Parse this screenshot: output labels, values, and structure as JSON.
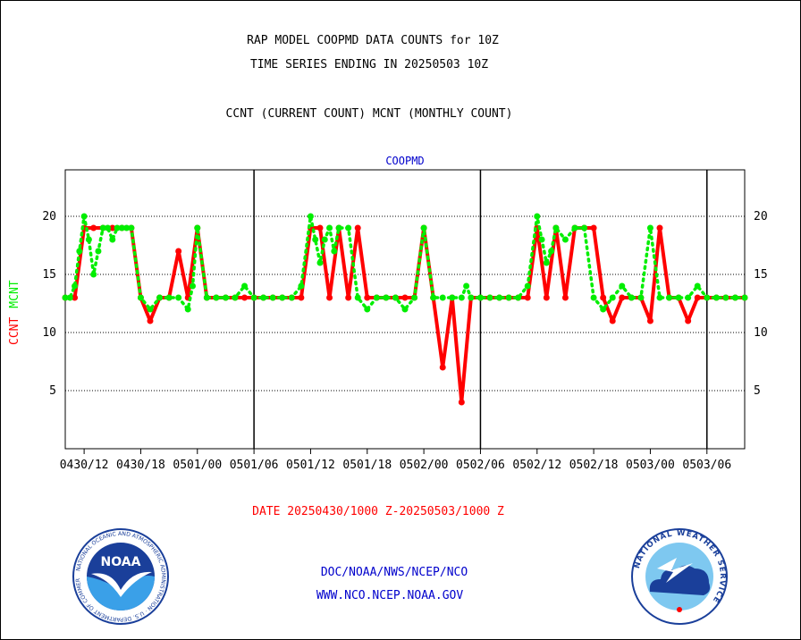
{
  "titles": {
    "line1": "RAP MODEL COOPMD DATA COUNTS for 10Z",
    "line2": "TIME SERIES ENDING IN 20250503 10Z",
    "line3": "CCNT (CURRENT COUNT) MCNT (MONTHLY COUNT)"
  },
  "footer": {
    "date_range": "DATE 20250430/1000 Z-20250503/1000 Z",
    "org": "DOC/NOAA/NWS/NCEP/NCO",
    "site": "WWW.NCO.NCEP.NOAA.GOV"
  },
  "logos": {
    "noaa_text": "NOAA",
    "noaa_ring": "NATIONAL OCEANIC AND ATMOSPHERIC ADMINISTRATION · U.S. DEPARTMENT OF COMMERCE",
    "nws_ring": "NATIONAL WEATHER SERVICE"
  },
  "colors": {
    "ccnt": "#ff0000",
    "mcnt": "#00ee00",
    "title": "#000000",
    "subtitle": "#0000cc",
    "date": "#ff0000",
    "footer": "#0000cc"
  },
  "chart_data": {
    "type": "line",
    "title": "COOPMD",
    "ylabel_series": [
      "CCNT",
      "MCNT"
    ],
    "ylim": [
      0,
      24
    ],
    "yticks": [
      5,
      10,
      15,
      20
    ],
    "x_hours_range": [
      0,
      72
    ],
    "x_ticks": [
      "0430/12",
      "0430/18",
      "0501/00",
      "0501/06",
      "0501/12",
      "0501/18",
      "0502/00",
      "0502/06",
      "0502/12",
      "0502/18",
      "0503/00",
      "0503/06"
    ],
    "x_tick_hours": [
      2,
      8,
      14,
      20,
      26,
      32,
      38,
      44,
      50,
      56,
      62,
      68
    ],
    "day_boundaries_hours": [
      20,
      44,
      68
    ],
    "series": [
      {
        "name": "CCNT",
        "x": [
          0,
          1,
          2,
          3,
          4,
          5,
          6,
          7,
          8,
          9,
          10,
          11,
          12,
          13,
          14,
          15,
          16,
          17,
          18,
          19,
          20,
          21,
          22,
          23,
          24,
          25,
          26,
          27,
          28,
          29,
          30,
          31,
          32,
          33,
          34,
          35,
          36,
          37,
          38,
          39,
          40,
          41,
          42,
          43,
          44,
          45,
          46,
          47,
          48,
          49,
          50,
          51,
          52,
          53,
          54,
          55,
          56,
          57,
          58,
          59,
          60,
          61,
          62,
          63,
          64,
          65,
          66,
          67,
          68,
          69,
          70,
          71,
          72
        ],
        "y": [
          13,
          13,
          19,
          19,
          19,
          19,
          19,
          19,
          13,
          11,
          13,
          13,
          17,
          13,
          19,
          13,
          13,
          13,
          13,
          13,
          13,
          13,
          13,
          13,
          13,
          13,
          19,
          19,
          13,
          19,
          13,
          19,
          13,
          13,
          13,
          13,
          13,
          13,
          19,
          13,
          7,
          13,
          4,
          13,
          13,
          13,
          13,
          13,
          13,
          13,
          19,
          13,
          19,
          13,
          19,
          19,
          19,
          13,
          11,
          13,
          13,
          13,
          11,
          19,
          13,
          13,
          11,
          13,
          13,
          13,
          13,
          13,
          13
        ]
      },
      {
        "name": "MCNT",
        "x": [
          0,
          0.5,
          1,
          1.5,
          2,
          2.5,
          3,
          3.5,
          4,
          4.5,
          5,
          5.5,
          6,
          6.5,
          7,
          8,
          9,
          10,
          11,
          12,
          13,
          13.5,
          14,
          15,
          16,
          17,
          18,
          19,
          20,
          21,
          22,
          23,
          24,
          25,
          26,
          26.5,
          27,
          27.5,
          28,
          28.5,
          29,
          30,
          31,
          32,
          33,
          34,
          35,
          36,
          37,
          38,
          39,
          40,
          41,
          42,
          42.5,
          43,
          44,
          45,
          46,
          47,
          48,
          49,
          50,
          50.5,
          51,
          51.5,
          52,
          53,
          54,
          55,
          56,
          57,
          58,
          59,
          60,
          61,
          62,
          63,
          64,
          65,
          66,
          67,
          68,
          69,
          70,
          71,
          72
        ],
        "y": [
          13,
          13,
          14,
          17,
          20,
          18,
          15,
          17,
          19,
          19,
          18,
          19,
          19,
          19,
          19,
          13,
          12,
          13,
          13,
          13,
          12,
          14,
          19,
          13,
          13,
          13,
          13,
          14,
          13,
          13,
          13,
          13,
          13,
          14,
          20,
          18,
          16,
          18,
          19,
          17,
          19,
          19,
          13,
          12,
          13,
          13,
          13,
          12,
          13,
          19,
          13,
          13,
          13,
          13,
          14,
          13,
          13,
          13,
          13,
          13,
          13,
          14,
          20,
          18,
          16,
          17,
          19,
          18,
          19,
          19,
          13,
          12,
          13,
          14,
          13,
          13,
          19,
          13,
          13,
          13,
          13,
          14,
          13,
          13,
          13,
          13,
          13
        ]
      }
    ]
  }
}
